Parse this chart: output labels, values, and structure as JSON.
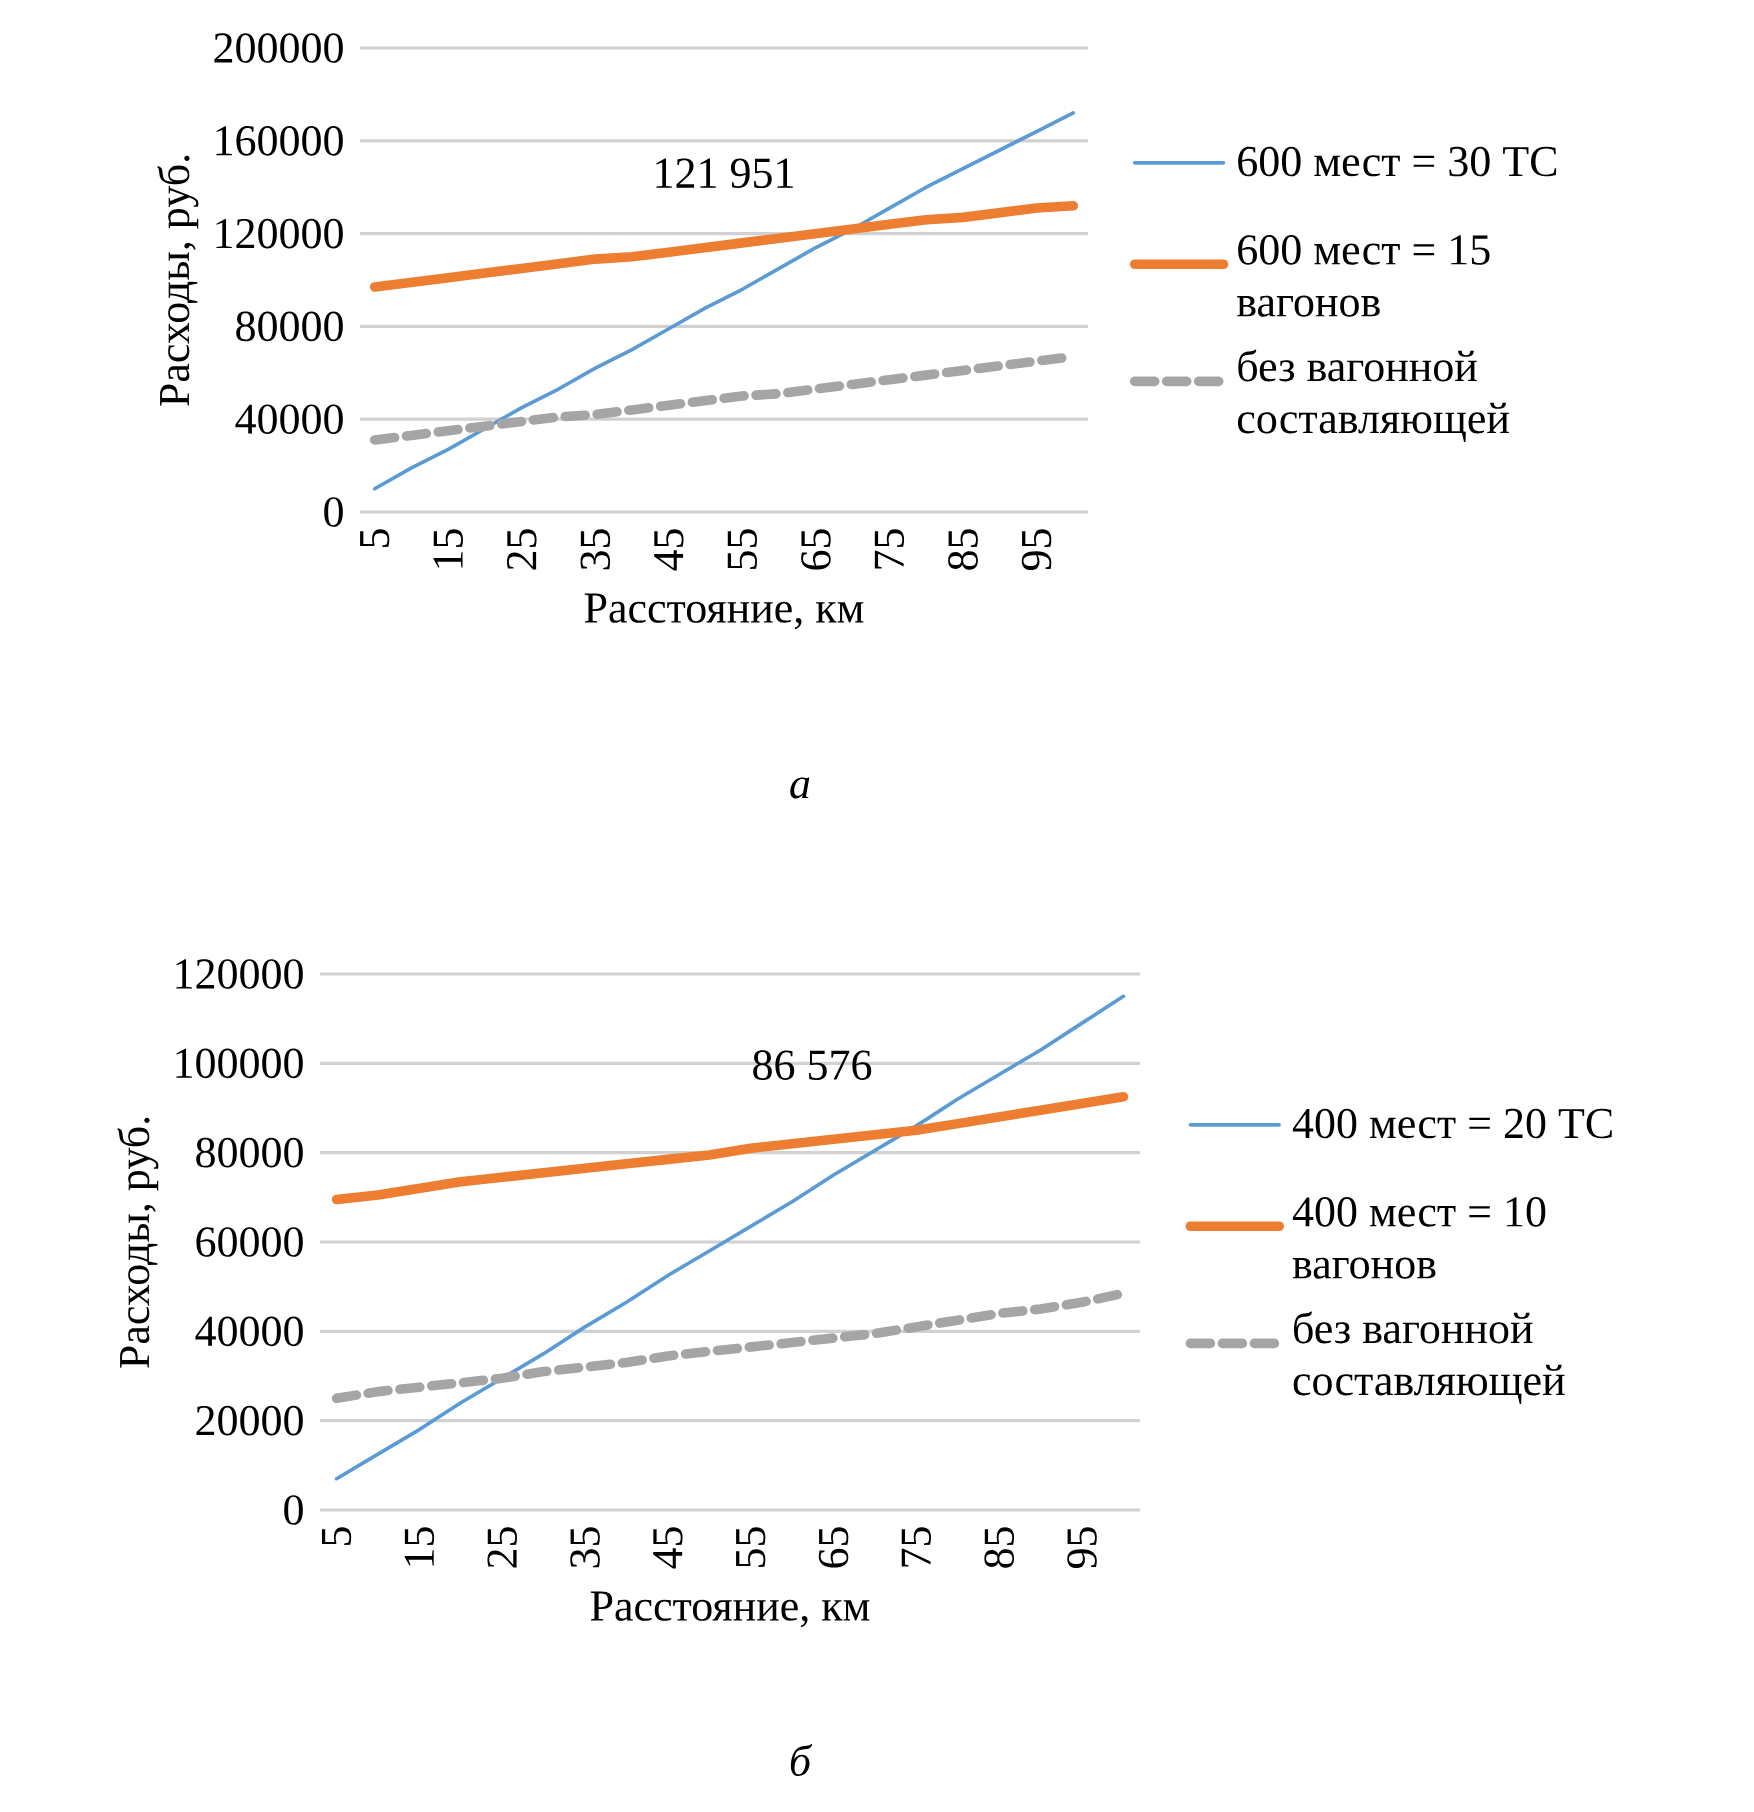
{
  "chart_data": [
    {
      "type": "line",
      "xlabel": "Расстояние, км",
      "ylabel": "Расходы, руб.",
      "categories": [
        "5",
        null,
        "15",
        null,
        "25",
        null,
        "35",
        null,
        "45",
        null,
        "55",
        null,
        "65",
        null,
        "75",
        null,
        "85",
        null,
        "95",
        null
      ],
      "series": [
        {
          "name": "600 мест = 30 ТС",
          "color": "#5b9bd5",
          "values": [
            10000,
            19000,
            27000,
            36000,
            45000,
            53000,
            62000,
            70000,
            79000,
            88000,
            96000,
            105000,
            114000,
            122000,
            131000,
            140000,
            148000,
            156000,
            164000,
            172000
          ]
        },
        {
          "name": "600 мест = 15 вагонов",
          "color": "#ed7d31",
          "values": [
            97000,
            99000,
            101000,
            103000,
            105000,
            107000,
            109000,
            110000,
            112000,
            114000,
            116000,
            118000,
            120000,
            122000,
            124000,
            126000,
            127000,
            129000,
            131000,
            132000
          ]
        },
        {
          "name": "без вагонной составляющей",
          "color": "#a5a5a5",
          "line_style": "dashed",
          "values": [
            31000,
            33000,
            35000,
            37000,
            39000,
            41000,
            42000,
            44000,
            46000,
            48000,
            50000,
            51000,
            53000,
            55000,
            57000,
            59000,
            61000,
            63000,
            65000,
            67000
          ]
        }
      ],
      "ylim": [
        0,
        200000
      ],
      "yticks": [
        0,
        40000,
        80000,
        120000,
        160000,
        200000
      ],
      "grid": "y",
      "legend": "right",
      "annotations": [
        "121 951",
        "а"
      ]
    },
    {
      "type": "line",
      "xlabel": "Расстояние, км",
      "ylabel": "Расходы, руб.",
      "categories": [
        "5",
        null,
        "15",
        null,
        "25",
        null,
        "35",
        null,
        "45",
        null,
        "55",
        null,
        "65",
        null,
        "75",
        null,
        "85",
        null,
        "95",
        null
      ],
      "series": [
        {
          "name": "400 мест = 20 ТС",
          "color": "#5b9bd5",
          "values": [
            7000,
            12500,
            18000,
            24000,
            29500,
            35000,
            41000,
            46500,
            52500,
            58000,
            63500,
            69000,
            75000,
            80500,
            86000,
            92000,
            97500,
            103000,
            109000,
            115000
          ]
        },
        {
          "name": "400 мест = 10 вагонов",
          "color": "#ed7d31",
          "values": [
            69500,
            70500,
            72000,
            73500,
            74500,
            75500,
            76500,
            77500,
            78500,
            79500,
            81000,
            82000,
            83000,
            84000,
            85000,
            86500,
            88000,
            89500,
            91000,
            92500
          ]
        },
        {
          "name": "без вагонной составляющей",
          "color": "#a5a5a5",
          "line_style": "dashed",
          "values": [
            25000,
            26500,
            27500,
            28500,
            29500,
            31000,
            32000,
            33000,
            34500,
            35500,
            36500,
            37500,
            38500,
            39500,
            41000,
            42500,
            44000,
            45000,
            46500,
            48500
          ]
        }
      ],
      "ylim": [
        0,
        120000
      ],
      "yticks": [
        0,
        20000,
        40000,
        60000,
        80000,
        100000,
        120000
      ],
      "grid": "y",
      "legend": "right",
      "annotations": [
        "86 576",
        "б"
      ]
    }
  ]
}
